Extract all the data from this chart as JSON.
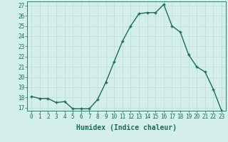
{
  "x_values": [
    0,
    1,
    2,
    3,
    4,
    5,
    6,
    7,
    8,
    9,
    10,
    11,
    12,
    13,
    14,
    15,
    16,
    17,
    18,
    19,
    20,
    21,
    22,
    23
  ],
  "y_values": [
    18.1,
    17.9,
    17.9,
    17.5,
    17.6,
    16.9,
    16.9,
    16.9,
    17.8,
    19.5,
    21.5,
    23.5,
    25.0,
    26.2,
    26.3,
    26.3,
    27.1,
    25.0,
    24.4,
    22.2,
    21.0,
    20.5,
    18.8,
    16.7
  ],
  "line_color": "#1a6b5a",
  "marker": "+",
  "marker_size": 3.5,
  "bg_color": "#d4eeeb",
  "grid_color": "#b8d8d5",
  "tick_color": "#1a6b5a",
  "xlabel": "Humidex (Indice chaleur)",
  "xlabel_fontsize": 7,
  "ylim": [
    17,
    27
  ],
  "xlim": [
    -0.5,
    23.5
  ],
  "yticks": [
    17,
    18,
    19,
    20,
    21,
    22,
    23,
    24,
    25,
    26,
    27
  ],
  "xticks": [
    0,
    1,
    2,
    3,
    4,
    5,
    6,
    7,
    8,
    9,
    10,
    11,
    12,
    13,
    14,
    15,
    16,
    17,
    18,
    19,
    20,
    21,
    22,
    23
  ],
  "tick_fontsize": 5.5,
  "line_width": 1.0
}
